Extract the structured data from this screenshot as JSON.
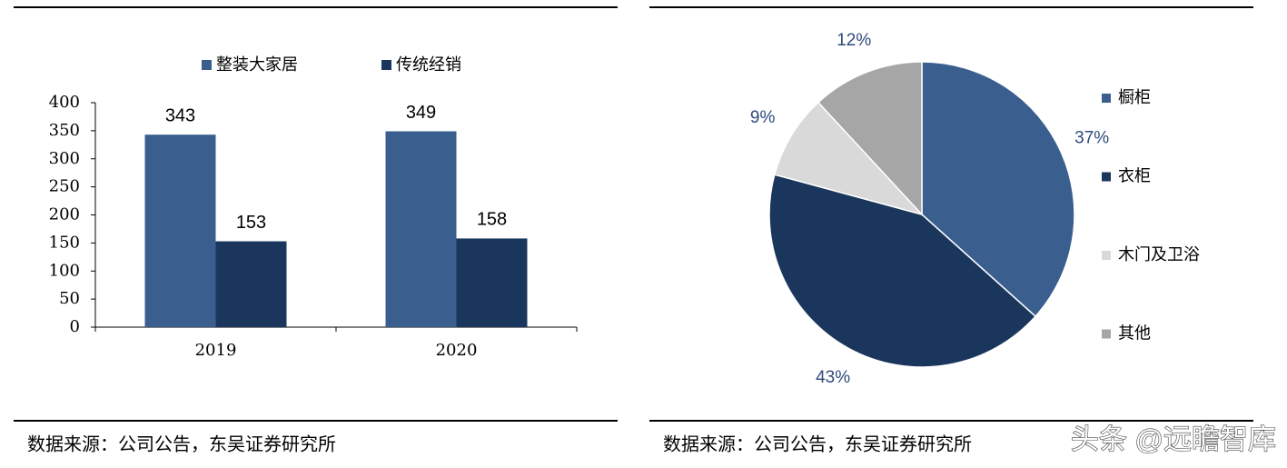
{
  "chart_data": [
    {
      "type": "bar",
      "categories": [
        "2019",
        "2020"
      ],
      "series": [
        {
          "name": "整装大家居",
          "color": "#3a5f8f",
          "values": [
            343,
            349
          ]
        },
        {
          "name": "传统经销",
          "color": "#1b365d",
          "values": [
            153,
            158
          ]
        }
      ],
      "ylim": [
        0,
        400
      ],
      "yticks": [
        0,
        50,
        100,
        150,
        200,
        250,
        300,
        350,
        400
      ],
      "grid": false,
      "legend": "top",
      "source": "数据来源：公司公告，东吴证券研究所"
    },
    {
      "type": "pie",
      "categories": [
        "橱柜",
        "衣柜",
        "木门及卫浴",
        "其他"
      ],
      "values": [
        37,
        43,
        9,
        12
      ],
      "value_labels": [
        "37%",
        "43%",
        "9%",
        "12%"
      ],
      "colors": [
        "#3a5f8f",
        "#1b365d",
        "#d9d9d9",
        "#a6a6a6"
      ],
      "legend": "right",
      "source": "数据来源：公司公告，东吴证券研究所"
    }
  ],
  "watermark": "头条 @远瞻智库"
}
